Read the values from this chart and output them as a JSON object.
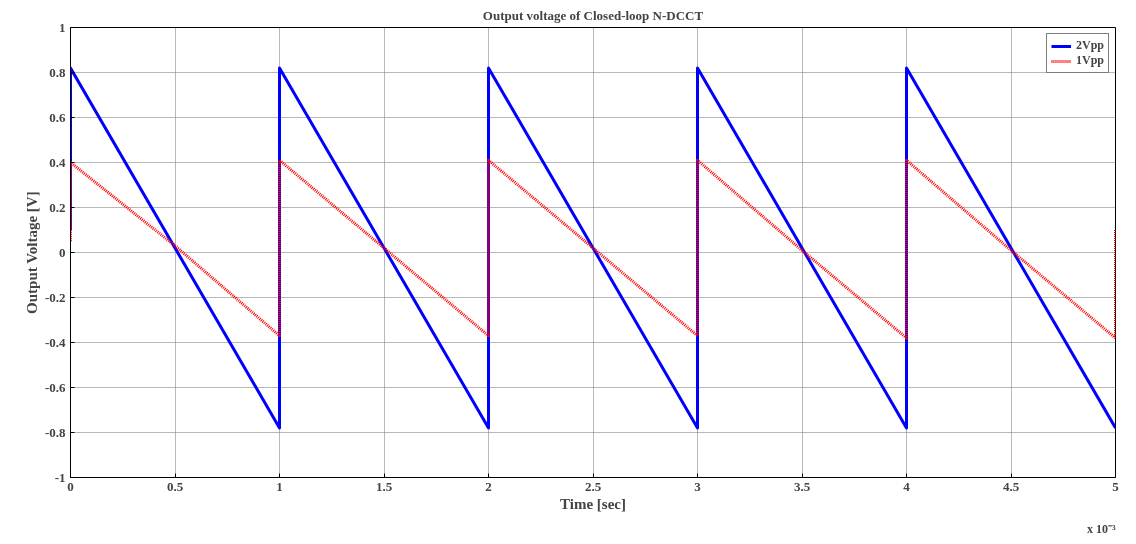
{
  "chart_data": {
    "type": "line",
    "title": "Output voltage of Closed-loop N-DCCT",
    "xlabel": "Time [sec]",
    "ylabel": "Output Voltage [V]",
    "xlim": [
      0,
      5
    ],
    "ylim": [
      -1,
      1
    ],
    "xticks": [
      0,
      0.5,
      1,
      1.5,
      2,
      2.5,
      3,
      3.5,
      4,
      4.5,
      5
    ],
    "yticks": [
      -1,
      -0.8,
      -0.6,
      -0.4,
      -0.2,
      0,
      0.2,
      0.4,
      0.6,
      0.8,
      1
    ],
    "grid": true,
    "legend": "top right",
    "annotations": [
      "x 10⁻³"
    ],
    "series": [
      {
        "name": "2Vpp",
        "color": "#0000ff",
        "line_style": "solid",
        "x": [
          0,
          0,
          0.5,
          1,
          1,
          1.5,
          2,
          2,
          2.5,
          3,
          3,
          3.5,
          4,
          4,
          4.5,
          5
        ],
        "values": [
          0.1,
          0.82,
          0.02,
          -0.78,
          0.82,
          0.02,
          -0.78,
          0.82,
          0.02,
          -0.78,
          0.82,
          0.02,
          -0.78,
          0.82,
          0.02,
          -0.78
        ]
      },
      {
        "name": "1Vpp",
        "color": "#ff0000",
        "line_style": "dotted",
        "x": [
          0,
          0,
          0.5,
          1,
          1,
          1.5,
          2,
          2,
          2.5,
          3,
          3,
          3.5,
          4,
          4,
          4.5,
          5,
          5
        ],
        "values": [
          0.05,
          0.4,
          0.03,
          -0.37,
          0.41,
          0.02,
          -0.37,
          0.41,
          0.02,
          -0.37,
          0.41,
          0.01,
          -0.38,
          0.41,
          0.01,
          -0.38,
          0.1
        ]
      }
    ]
  }
}
